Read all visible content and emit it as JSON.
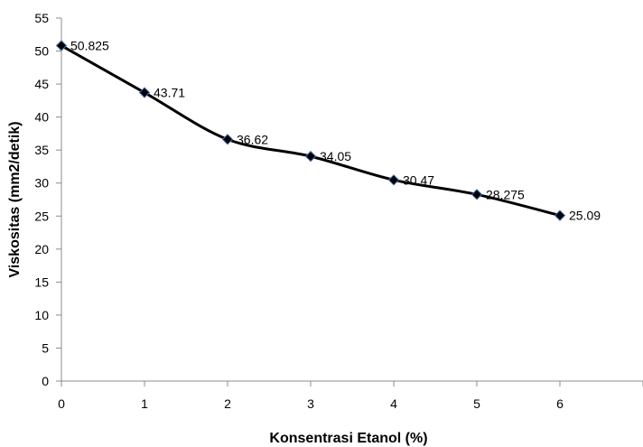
{
  "chart_data": {
    "type": "line",
    "xlabel": "Konsentrasi Etanol (%)",
    "ylabel": "Viskositas (mm2/detik)",
    "x": [
      0,
      1,
      2,
      3,
      4,
      5,
      6
    ],
    "series": [
      {
        "values": [
          50.825,
          43.71,
          36.62,
          34.05,
          30.47,
          28.275,
          25.09
        ],
        "labels": [
          "50.825",
          "43.71",
          "36.62",
          "34.05",
          "30.47",
          "28.275",
          "25.09"
        ]
      }
    ],
    "xlim": [
      0,
      7
    ],
    "ylim": [
      0,
      55
    ],
    "x_ticks": [
      "0",
      "1",
      "2",
      "3",
      "4",
      "5",
      "6"
    ],
    "y_ticks": [
      "0",
      "5",
      "10",
      "15",
      "20",
      "25",
      "30",
      "35",
      "40",
      "45",
      "50",
      "55"
    ],
    "grid": false,
    "legend": "none",
    "line_color": "#000000",
    "marker": "diamond",
    "marker_color": "#000000",
    "marker_edge_color": "#4a6fb5"
  }
}
